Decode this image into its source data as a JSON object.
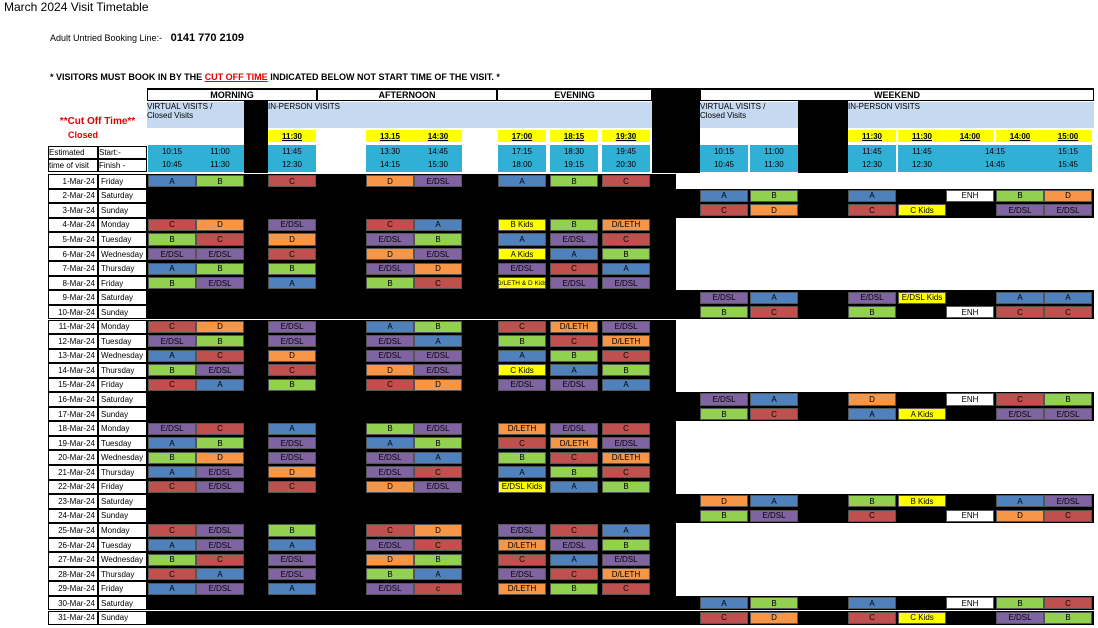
{
  "title": "March  2024 Visit Timetable",
  "booking_line": {
    "label": "Adult Untried Booking Line:-",
    "number": "0141 770 2109"
  },
  "notice": [
    "* VISITORS MUST BOOK IN BY THE ",
    "CUT OFF TIME",
    " INDICATED BELOW NOT START TIME OF THE VISIT. *"
  ],
  "sections": [
    "MORNING",
    "AFTERNOON",
    "EVENING",
    "WEEKEND"
  ],
  "cutoff_label": "**Cut Off Time**",
  "closed_label": "Closed",
  "visit_groups": [
    [
      "VIRTUAL VISITS /",
      "Closed Visits"
    ],
    [
      "IN-PERSON VISITS"
    ],
    [
      "VIRTUAL VISITS /",
      "Closed Visits"
    ],
    [
      "IN-PERSON VISITS"
    ]
  ],
  "cutoff_times": [
    "11:30",
    "13.15",
    "14:30",
    "17:00",
    "18:15",
    "19:30",
    "11:30",
    "11:30",
    "14:00",
    "14:00",
    "15:00"
  ],
  "estimated": {
    "labels": [
      "Estimated",
      "time of visit"
    ],
    "start_label": "Start:-",
    "finish_label": "Finish -",
    "start": [
      "10:15",
      "11:00",
      "11:45",
      "13:30",
      "14:45",
      "17:15",
      "18:30",
      "19:45",
      "10:15",
      "11:00",
      "11:45",
      "11:45",
      "14:15",
      "15:15"
    ],
    "finish": [
      "10:45",
      "11:30",
      "12:30",
      "14:15",
      "15:30",
      "18:00",
      "19:15",
      "20:30",
      "10:45",
      "11:30",
      "12:30",
      "12:30",
      "14:45",
      "15:45"
    ]
  },
  "rows": [
    {
      "date": "1-Mar-24",
      "day": "Friday",
      "cells": [
        "A",
        "B",
        "C",
        "D",
        "E/DSL",
        "A",
        "B",
        "C",
        null,
        null,
        null,
        null,
        null,
        null,
        null
      ]
    },
    {
      "date": "2-Mar-24",
      "day": "Saturday",
      "cells": [
        null,
        null,
        null,
        null,
        null,
        null,
        null,
        null,
        "A",
        "B",
        "A",
        null,
        "ENH",
        "B",
        "D"
      ]
    },
    {
      "date": "3-Mar-24",
      "day": "Sunday",
      "cells": [
        null,
        null,
        null,
        null,
        null,
        null,
        null,
        null,
        "C",
        "D",
        "C",
        "C Kids",
        null,
        "E/DSL",
        "E/DSL"
      ]
    },
    {
      "date": "4-Mar-24",
      "day": "Monday",
      "cells": [
        "C",
        "D",
        "E/DSL",
        "C",
        "A",
        "B Kids",
        "B",
        "D/LETH",
        null,
        null,
        null,
        null,
        null,
        null,
        null
      ]
    },
    {
      "date": "5-Mar-24",
      "day": "Tuesday",
      "cells": [
        "B",
        "C",
        "D",
        "E/DSL",
        "B",
        "A",
        "E/DSL",
        "C",
        null,
        null,
        null,
        null,
        null,
        null,
        null
      ]
    },
    {
      "date": "6-Mar-24",
      "day": "Wednesday",
      "cells": [
        "E/DSL",
        "E/DSL",
        "C",
        "D",
        "E/DSL",
        "A Kids",
        "A",
        "B",
        null,
        null,
        null,
        null,
        null,
        null,
        null
      ]
    },
    {
      "date": "7-Mar-24",
      "day": "Thursday",
      "cells": [
        "A",
        "B",
        "B",
        "E/DSL",
        "D",
        "E/DSL",
        "C",
        "A",
        null,
        null,
        null,
        null,
        null,
        null,
        null
      ]
    },
    {
      "date": "8-Mar-24",
      "day": "Friday",
      "cells": [
        "B",
        "E/DSL",
        "A",
        "B",
        "C",
        "D/LETH & D Kids",
        "E/DSL",
        "E/DSL",
        null,
        null,
        null,
        null,
        null,
        null,
        null
      ]
    },
    {
      "date": "9-Mar-24",
      "day": "Saturday",
      "cells": [
        null,
        null,
        null,
        null,
        null,
        null,
        null,
        null,
        "E/DSL",
        "A",
        "E/DSL",
        "E/DSL Kids",
        null,
        "A",
        "A"
      ]
    },
    {
      "date": "10-Mar-24",
      "day": "Sunday",
      "cells": [
        null,
        null,
        null,
        null,
        null,
        null,
        null,
        null,
        "B",
        "C",
        "B",
        null,
        "ENH",
        "C",
        "C"
      ]
    },
    {
      "date": "11-Mar-24",
      "day": "Monday",
      "cells": [
        "C",
        "D",
        "E/DSL",
        "A",
        "B",
        "C",
        "D/LETH",
        "E/DSL",
        null,
        null,
        null,
        null,
        null,
        null,
        null
      ]
    },
    {
      "date": "12-Mar-24",
      "day": "Tuesday",
      "cells": [
        "E/DSL",
        "B",
        "E/DSL",
        "E/DSL",
        "A",
        "B",
        "C",
        "D/LETH",
        null,
        null,
        null,
        null,
        null,
        null,
        null
      ]
    },
    {
      "date": "13-Mar-24",
      "day": "Wednesday",
      "cells": [
        "A",
        "C",
        "D",
        "E/DSL",
        "E/DSL",
        "A",
        "B",
        "C",
        null,
        null,
        null,
        null,
        null,
        null,
        null
      ]
    },
    {
      "date": "14-Mar-24",
      "day": "Thursday",
      "cells": [
        "B",
        "E/DSL",
        "C",
        "D",
        "E/DSL",
        "C Kids",
        "A",
        "B",
        null,
        null,
        null,
        null,
        null,
        null,
        null
      ]
    },
    {
      "date": "15-Mar-24",
      "day": "Friday",
      "cells": [
        "C",
        "A",
        "B",
        "C",
        "D",
        "E/DSL",
        "E/DSL",
        "A",
        null,
        null,
        null,
        null,
        null,
        null,
        null
      ]
    },
    {
      "date": "16-Mar-24",
      "day": "Saturday",
      "cells": [
        null,
        null,
        null,
        null,
        null,
        null,
        null,
        null,
        "E/DSL",
        "A",
        "D",
        null,
        "ENH",
        "C",
        "B"
      ]
    },
    {
      "date": "17-Mar-24",
      "day": "Sunday",
      "cells": [
        null,
        null,
        null,
        null,
        null,
        null,
        null,
        null,
        "B",
        "C",
        "A",
        "A Kids",
        null,
        "E/DSL",
        "E/DSL"
      ]
    },
    {
      "date": "18-Mar-24",
      "day": "Monday",
      "cells": [
        "E/DSL",
        "C",
        "A",
        "B",
        "E/DSL",
        "D/LETH",
        "E/DSL",
        "C",
        null,
        null,
        null,
        null,
        null,
        null,
        null
      ]
    },
    {
      "date": "19-Mar-24",
      "day": "Tuesday",
      "cells": [
        "A",
        "B",
        "E/DSL",
        "A",
        "B",
        "C",
        "D/LETH",
        "E/DSL",
        null,
        null,
        null,
        null,
        null,
        null,
        null
      ]
    },
    {
      "date": "20-Mar-24",
      "day": "Wednesday",
      "cells": [
        "B",
        "D",
        "E/DSL",
        "E/DSL",
        "A",
        "B",
        "C",
        "D/LETH",
        null,
        null,
        null,
        null,
        null,
        null,
        null
      ]
    },
    {
      "date": "21-Mar-24",
      "day": "Thursday",
      "cells": [
        "A",
        "E/DSL",
        "D",
        "E/DSL",
        "C",
        "A",
        "B",
        "C",
        null,
        null,
        null,
        null,
        null,
        null,
        null
      ]
    },
    {
      "date": "22-Mar-24",
      "day": "Friday",
      "cells": [
        "C",
        "E/DSL",
        "C",
        "D",
        "E/DSL",
        "E/DSL Kids",
        "A",
        "B",
        null,
        null,
        null,
        null,
        null,
        null,
        null
      ]
    },
    {
      "date": "23-Mar-24",
      "day": "Saturday",
      "cells": [
        null,
        null,
        null,
        null,
        null,
        null,
        null,
        null,
        "D",
        "A",
        "B",
        "B Kids",
        null,
        "A",
        "E/DSL"
      ]
    },
    {
      "date": "24-Mar-24",
      "day": "Sunday",
      "cells": [
        null,
        null,
        null,
        null,
        null,
        null,
        null,
        null,
        "B",
        "E/DSL",
        "C",
        null,
        "ENH",
        "D",
        "C"
      ]
    },
    {
      "date": "25-Mar-24",
      "day": "Monday",
      "cells": [
        "C",
        "E/DSL",
        "B",
        "C",
        "D",
        "E/DSL",
        "C",
        "A",
        null,
        null,
        null,
        null,
        null,
        null,
        null
      ]
    },
    {
      "date": "26-Mar-24",
      "day": "Tuesday",
      "cells": [
        "A",
        "E/DSL",
        "A",
        "E/DSL",
        "C",
        "D/LETH",
        "E/DSL",
        "B",
        null,
        null,
        null,
        null,
        null,
        null,
        null
      ]
    },
    {
      "date": "27-Mar-24",
      "day": "Wednesday",
      "cells": [
        "B",
        "C",
        "E/DSL",
        "D",
        "B",
        "C",
        "A",
        "E/DSL",
        null,
        null,
        null,
        null,
        null,
        null,
        null
      ]
    },
    {
      "date": "28-Mar-24",
      "day": "Thursday",
      "cells": [
        "C",
        "A",
        "E/DSL",
        "B",
        "A",
        "E/DSL",
        "C",
        "D/LETH",
        null,
        null,
        null,
        null,
        null,
        null,
        null
      ]
    },
    {
      "date": "29-Mar-24",
      "day": "Friday",
      "cells": [
        "A",
        "E/DSL",
        "A",
        "E/DSL",
        "c",
        "D/LETH",
        "B",
        "C",
        null,
        null,
        null,
        null,
        null,
        null,
        null
      ]
    },
    {
      "date": "30-Mar-24",
      "day": "Saturday",
      "cells": [
        null,
        null,
        null,
        null,
        null,
        null,
        null,
        null,
        "A",
        "B",
        "A",
        null,
        "ENH",
        "B",
        "C"
      ]
    },
    {
      "date": "31-Mar-24",
      "day": "Sunday",
      "cells": [
        null,
        null,
        null,
        null,
        null,
        null,
        null,
        null,
        "C",
        "D",
        "C",
        "C Kids",
        null,
        "E/DSL",
        "B"
      ]
    }
  ]
}
